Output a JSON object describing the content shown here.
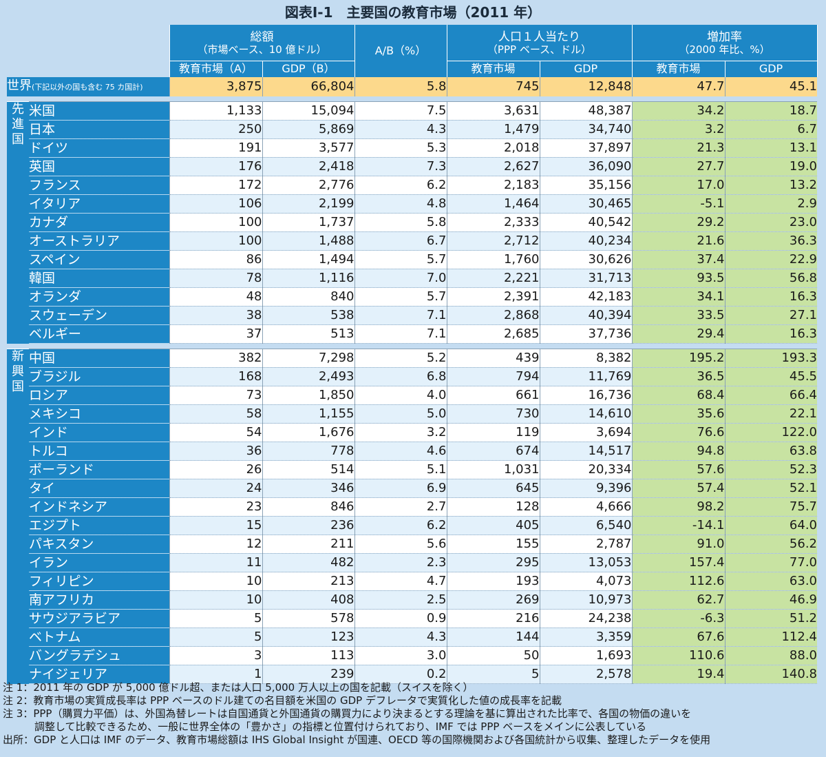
{
  "title": "図表Ⅰ-1　主要国の教育市場（2011 年）",
  "header": {
    "total_line1": "総額",
    "total_line2": "（市場ベース、10 億ドル）",
    "ratio": "A/B（%）",
    "percap_line1": "人口１人当たり",
    "percap_line2": "（PPP ベース、ドル）",
    "growth_line1": "増加率",
    "growth_line2": "（2000 年比、%）",
    "edu_market_a": "教育市場（A）",
    "gdp_b": "GDP（B）",
    "edu_market": "教育市場",
    "gdp": "GDP"
  },
  "world": {
    "name": "世界",
    "note": "(下記以外の国も含む 75 カ国計)",
    "values": [
      "3,875",
      "66,804",
      "5.8",
      "745",
      "12,848",
      "47.7",
      "45.1"
    ]
  },
  "sections": [
    {
      "label": "先進国",
      "rows": [
        {
          "name": "米国",
          "values": [
            "1,133",
            "15,094",
            "7.5",
            "3,631",
            "48,387",
            "34.2",
            "18.7"
          ]
        },
        {
          "name": "日本",
          "values": [
            "250",
            "5,869",
            "4.3",
            "1,479",
            "34,740",
            "3.2",
            "6.7"
          ]
        },
        {
          "name": "ドイツ",
          "values": [
            "191",
            "3,577",
            "5.3",
            "2,018",
            "37,897",
            "21.3",
            "13.1"
          ]
        },
        {
          "name": "英国",
          "values": [
            "176",
            "2,418",
            "7.3",
            "2,627",
            "36,090",
            "27.7",
            "19.0"
          ]
        },
        {
          "name": "フランス",
          "values": [
            "172",
            "2,776",
            "6.2",
            "2,183",
            "35,156",
            "17.0",
            "13.2"
          ]
        },
        {
          "name": "イタリア",
          "values": [
            "106",
            "2,199",
            "4.8",
            "1,464",
            "30,465",
            "-5.1",
            "2.9"
          ]
        },
        {
          "name": "カナダ",
          "values": [
            "100",
            "1,737",
            "5.8",
            "2,333",
            "40,542",
            "29.2",
            "23.0"
          ]
        },
        {
          "name": "オーストラリア",
          "values": [
            "100",
            "1,488",
            "6.7",
            "2,712",
            "40,234",
            "21.6",
            "36.3"
          ]
        },
        {
          "name": "スペイン",
          "values": [
            "86",
            "1,494",
            "5.7",
            "1,760",
            "30,626",
            "37.4",
            "22.9"
          ]
        },
        {
          "name": "韓国",
          "values": [
            "78",
            "1,116",
            "7.0",
            "2,221",
            "31,713",
            "93.5",
            "56.8"
          ]
        },
        {
          "name": "オランダ",
          "values": [
            "48",
            "840",
            "5.7",
            "2,391",
            "42,183",
            "34.1",
            "16.3"
          ]
        },
        {
          "name": "スウェーデン",
          "values": [
            "38",
            "538",
            "7.1",
            "2,868",
            "40,394",
            "33.5",
            "27.1"
          ]
        },
        {
          "name": "ベルギー",
          "values": [
            "37",
            "513",
            "7.1",
            "2,685",
            "37,736",
            "29.4",
            "16.3"
          ]
        }
      ]
    },
    {
      "label": "新興国",
      "rows": [
        {
          "name": "中国",
          "values": [
            "382",
            "7,298",
            "5.2",
            "439",
            "8,382",
            "195.2",
            "193.3"
          ]
        },
        {
          "name": "ブラジル",
          "values": [
            "168",
            "2,493",
            "6.8",
            "794",
            "11,769",
            "36.5",
            "45.5"
          ]
        },
        {
          "name": "ロシア",
          "values": [
            "73",
            "1,850",
            "4.0",
            "661",
            "16,736",
            "68.4",
            "66.4"
          ]
        },
        {
          "name": "メキシコ",
          "values": [
            "58",
            "1,155",
            "5.0",
            "730",
            "14,610",
            "35.6",
            "22.1"
          ]
        },
        {
          "name": "インド",
          "values": [
            "54",
            "1,676",
            "3.2",
            "119",
            "3,694",
            "76.6",
            "122.0"
          ]
        },
        {
          "name": "トルコ",
          "values": [
            "36",
            "778",
            "4.6",
            "674",
            "14,517",
            "94.8",
            "63.8"
          ]
        },
        {
          "name": "ポーランド",
          "values": [
            "26",
            "514",
            "5.1",
            "1,031",
            "20,334",
            "57.6",
            "52.3"
          ]
        },
        {
          "name": "タイ",
          "values": [
            "24",
            "346",
            "6.9",
            "645",
            "9,396",
            "57.4",
            "52.1"
          ]
        },
        {
          "name": "インドネシア",
          "values": [
            "23",
            "846",
            "2.7",
            "128",
            "4,666",
            "98.2",
            "75.7"
          ]
        },
        {
          "name": "エジプト",
          "values": [
            "15",
            "236",
            "6.2",
            "405",
            "6,540",
            "-14.1",
            "64.0"
          ]
        },
        {
          "name": "パキスタン",
          "values": [
            "12",
            "211",
            "5.6",
            "155",
            "2,787",
            "91.0",
            "56.2"
          ]
        },
        {
          "name": "イラン",
          "values": [
            "11",
            "482",
            "2.3",
            "295",
            "13,053",
            "157.4",
            "77.0"
          ]
        },
        {
          "name": "フィリピン",
          "values": [
            "10",
            "213",
            "4.7",
            "193",
            "4,073",
            "112.6",
            "63.0"
          ]
        },
        {
          "name": "南アフリカ",
          "values": [
            "10",
            "408",
            "2.5",
            "269",
            "10,973",
            "62.7",
            "46.9"
          ]
        },
        {
          "name": "サウジアラビア",
          "values": [
            "5",
            "578",
            "0.9",
            "216",
            "24,238",
            "-6.3",
            "51.2"
          ]
        },
        {
          "name": "ベトナム",
          "values": [
            "5",
            "123",
            "4.3",
            "144",
            "3,359",
            "67.6",
            "112.4"
          ]
        },
        {
          "name": "バングラデシュ",
          "values": [
            "3",
            "113",
            "3.0",
            "50",
            "1,693",
            "110.6",
            "88.0"
          ]
        },
        {
          "name": "ナイジェリア",
          "values": [
            "1",
            "239",
            "0.2",
            "5",
            "2,578",
            "19.4",
            "140.8"
          ]
        }
      ]
    }
  ],
  "notes": [
    {
      "label": "注 1：",
      "text": "2011 年の GDP が 5,000 億ドル超、または人口 5,000 万人以上の国を記載（スイスを除く）"
    },
    {
      "label": "注 2：",
      "text": "教育市場の実質成長率は PPP ベースのドル建ての名目額を米国の GDP デフレータで実質化した値の成長率を記載"
    },
    {
      "label": "注 3：",
      "text": "PPP（購買力平価）は、外国為替レートは自国通貨と外国通貨の購買力により決まるとする理論を基に算出された比率で、各国の物価の違いを"
    },
    {
      "label": "",
      "text": "調整して比較できるため、一般に世界全体の「豊かさ」の指標と位置付けられており、IMF では PPP ベースをメインに公表している"
    },
    {
      "label": "出所：",
      "text": "GDP と人口は IMF のデータ、教育市場総額は IHS Global Insight が国連、OECD 等の国際機関および各国統計から収集、整理したデータを使用"
    }
  ]
}
